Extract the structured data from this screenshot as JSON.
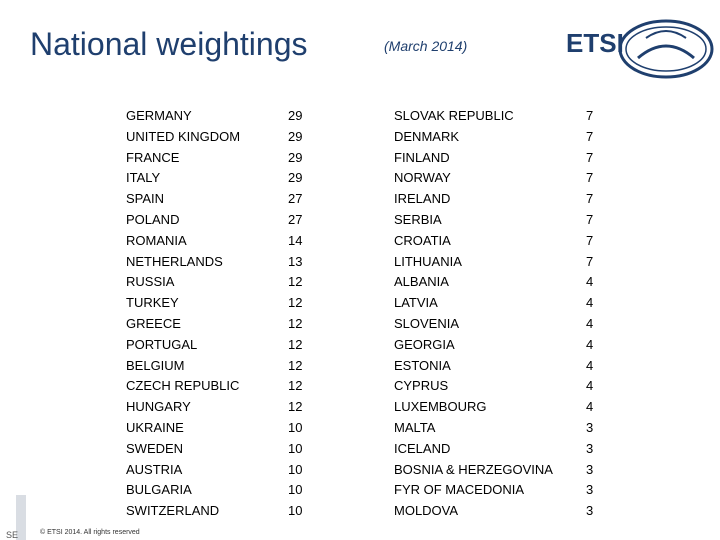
{
  "header": {
    "title": "National weightings",
    "subtitle": "(March 2014)",
    "logo_text": "ETSI"
  },
  "left_column": [
    {
      "country": "GERMANY",
      "weight": "29"
    },
    {
      "country": "UNITED KINGDOM",
      "weight": "29"
    },
    {
      "country": "FRANCE",
      "weight": "29"
    },
    {
      "country": "ITALY",
      "weight": "29"
    },
    {
      "country": "SPAIN",
      "weight": "27"
    },
    {
      "country": "POLAND",
      "weight": "27"
    },
    {
      "country": "ROMANIA",
      "weight": "14"
    },
    {
      "country": "NETHERLANDS",
      "weight": "13"
    },
    {
      "country": "RUSSIA",
      "weight": "12"
    },
    {
      "country": "TURKEY",
      "weight": "12"
    },
    {
      "country": "GREECE",
      "weight": "12"
    },
    {
      "country": "PORTUGAL",
      "weight": "12"
    },
    {
      "country": "BELGIUM",
      "weight": "12"
    },
    {
      "country": "CZECH REPUBLIC",
      "weight": "12"
    },
    {
      "country": "HUNGARY",
      "weight": "12"
    },
    {
      "country": "UKRAINE",
      "weight": "10"
    },
    {
      "country": "SWEDEN",
      "weight": "10"
    },
    {
      "country": "AUSTRIA",
      "weight": "10"
    },
    {
      "country": "BULGARIA",
      "weight": "10"
    },
    {
      "country": "SWITZERLAND",
      "weight": "10"
    }
  ],
  "right_column": [
    {
      "country": "SLOVAK REPUBLIC",
      "weight": "7"
    },
    {
      "country": "DENMARK",
      "weight": "7"
    },
    {
      "country": "FINLAND",
      "weight": "7"
    },
    {
      "country": "NORWAY",
      "weight": "7"
    },
    {
      "country": "IRELAND",
      "weight": "7"
    },
    {
      "country": "SERBIA",
      "weight": "7"
    },
    {
      "country": "CROATIA",
      "weight": "7"
    },
    {
      "country": "LITHUANIA",
      "weight": "7"
    },
    {
      "country": "ALBANIA",
      "weight": "4"
    },
    {
      "country": "LATVIA",
      "weight": "4"
    },
    {
      "country": "SLOVENIA",
      "weight": "4"
    },
    {
      "country": "GEORGIA",
      "weight": "4"
    },
    {
      "country": "ESTONIA",
      "weight": "4"
    },
    {
      "country": "CYPRUS",
      "weight": "4"
    },
    {
      "country": "LUXEMBOURG",
      "weight": "4"
    },
    {
      "country": "MALTA",
      "weight": "3"
    },
    {
      "country": "ICELAND",
      "weight": "3"
    },
    {
      "country": "BOSNIA & HERZEGOVINA",
      "weight": "3"
    },
    {
      "country": "FYR OF MACEDONIA",
      "weight": "3"
    },
    {
      "country": "MOLDOVA",
      "weight": "3"
    }
  ],
  "footer": {
    "copyright": "© ETSI 2014. All rights reserved",
    "corner": "SE"
  },
  "colors": {
    "title": "#1f3f6e",
    "logo": "#1f3f6e"
  }
}
